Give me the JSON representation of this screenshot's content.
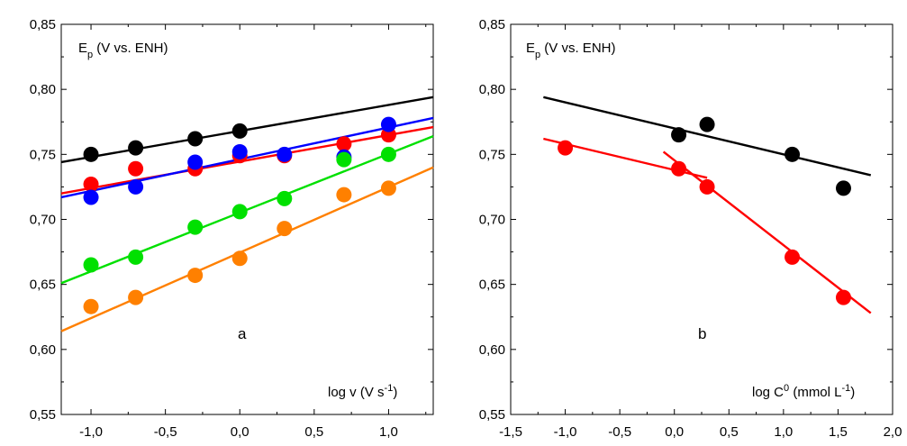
{
  "chart_data": [
    {
      "type": "scatter",
      "panel": "a",
      "ylabel_main": "E",
      "ylabel_sub": "p",
      "ylabel_rest": " (V vs. ENH)",
      "xlabel_main": "log v (V s",
      "xlabel_sup": "-1",
      "xlabel_end": ")",
      "xlim": [
        -1.2,
        1.3
      ],
      "ylim": [
        0.55,
        0.85
      ],
      "xticks": [
        "-1,0",
        "-0,5",
        "0,0",
        "0,5",
        "1,0"
      ],
      "xtick_values": [
        -1.0,
        -0.5,
        0.0,
        0.5,
        1.0
      ],
      "yticks": [
        "0,55",
        "0,60",
        "0,65",
        "0,70",
        "0,75",
        "0,80",
        "0,85"
      ],
      "ytick_values": [
        0.55,
        0.6,
        0.65,
        0.7,
        0.75,
        0.8,
        0.85
      ],
      "series": [
        {
          "color": "#000000",
          "x": [
            -1.0,
            -0.7,
            -0.3,
            0.0
          ],
          "y": [
            0.75,
            0.755,
            0.762,
            0.768
          ],
          "fit": {
            "x": [
              -1.2,
              1.3
            ],
            "y": [
              0.744,
              0.794
            ]
          }
        },
        {
          "color": "#ff0000",
          "x": [
            -1.0,
            -0.7,
            -0.3,
            0.0,
            0.3,
            0.7,
            1.0
          ],
          "y": [
            0.727,
            0.739,
            0.739,
            0.749,
            0.749,
            0.758,
            0.765
          ],
          "fit": {
            "x": [
              -1.2,
              1.3
            ],
            "y": [
              0.72,
              0.771
            ]
          }
        },
        {
          "color": "#0000ff",
          "x": [
            -1.0,
            -0.7,
            -0.3,
            0.0,
            0.3,
            0.7,
            1.0
          ],
          "y": [
            0.717,
            0.725,
            0.744,
            0.752,
            0.75,
            0.748,
            0.773
          ],
          "fit": {
            "x": [
              -1.2,
              1.3
            ],
            "y": [
              0.717,
              0.778
            ]
          }
        },
        {
          "color": "#00e000",
          "x": [
            -1.0,
            -0.7,
            -0.3,
            0.0,
            0.3,
            0.7,
            1.0
          ],
          "y": [
            0.665,
            0.671,
            0.694,
            0.706,
            0.716,
            0.746,
            0.75
          ],
          "fit": {
            "x": [
              -1.2,
              1.3
            ],
            "y": [
              0.651,
              0.764
            ]
          }
        },
        {
          "color": "#ff8000",
          "x": [
            -1.0,
            -0.7,
            -0.3,
            0.0,
            0.3,
            0.7,
            1.0
          ],
          "y": [
            0.633,
            0.64,
            0.657,
            0.67,
            0.693,
            0.719,
            0.724
          ],
          "fit": {
            "x": [
              -1.2,
              1.3
            ],
            "y": [
              0.614,
              0.74
            ]
          }
        }
      ]
    },
    {
      "type": "scatter",
      "panel": "b",
      "ylabel_main": "E",
      "ylabel_sub": "p",
      "ylabel_rest": " (V vs. ENH)",
      "xlabel_main": "log C",
      "xlabel_sup0": "0",
      "xlabel_mid": " (mmol L",
      "xlabel_sup": "-1",
      "xlabel_end": ")",
      "xlim": [
        -1.5,
        2.0
      ],
      "ylim": [
        0.55,
        0.85
      ],
      "xticks": [
        "-1,5",
        "-1,0",
        "-0,5",
        "0,0",
        "0,5",
        "1,0",
        "1,5",
        "2,0"
      ],
      "xtick_values": [
        -1.5,
        -1.0,
        -0.5,
        0.0,
        0.5,
        1.0,
        1.5,
        2.0
      ],
      "yticks": [
        "0,55",
        "0,60",
        "0,65",
        "0,70",
        "0,75",
        "0,80",
        "0,85"
      ],
      "ytick_values": [
        0.55,
        0.6,
        0.65,
        0.7,
        0.75,
        0.8,
        0.85
      ],
      "series": [
        {
          "color": "#000000",
          "x": [
            0.04,
            0.3,
            1.08,
            1.55
          ],
          "y": [
            0.765,
            0.773,
            0.75,
            0.724
          ],
          "fit": {
            "x": [
              -1.2,
              1.8
            ],
            "y": [
              0.794,
              0.734
            ]
          }
        },
        {
          "color": "#ff0000",
          "x": [
            -1.0,
            0.04,
            0.3,
            1.08,
            1.55
          ],
          "y": [
            0.755,
            0.739,
            0.725,
            0.671,
            0.64
          ],
          "fit": {
            "x": [
              -1.2,
              0.3
            ],
            "y": [
              0.762,
              0.732
            ]
          },
          "fit2": {
            "x": [
              -0.1,
              1.8
            ],
            "y": [
              0.752,
              0.628
            ]
          }
        }
      ]
    }
  ]
}
